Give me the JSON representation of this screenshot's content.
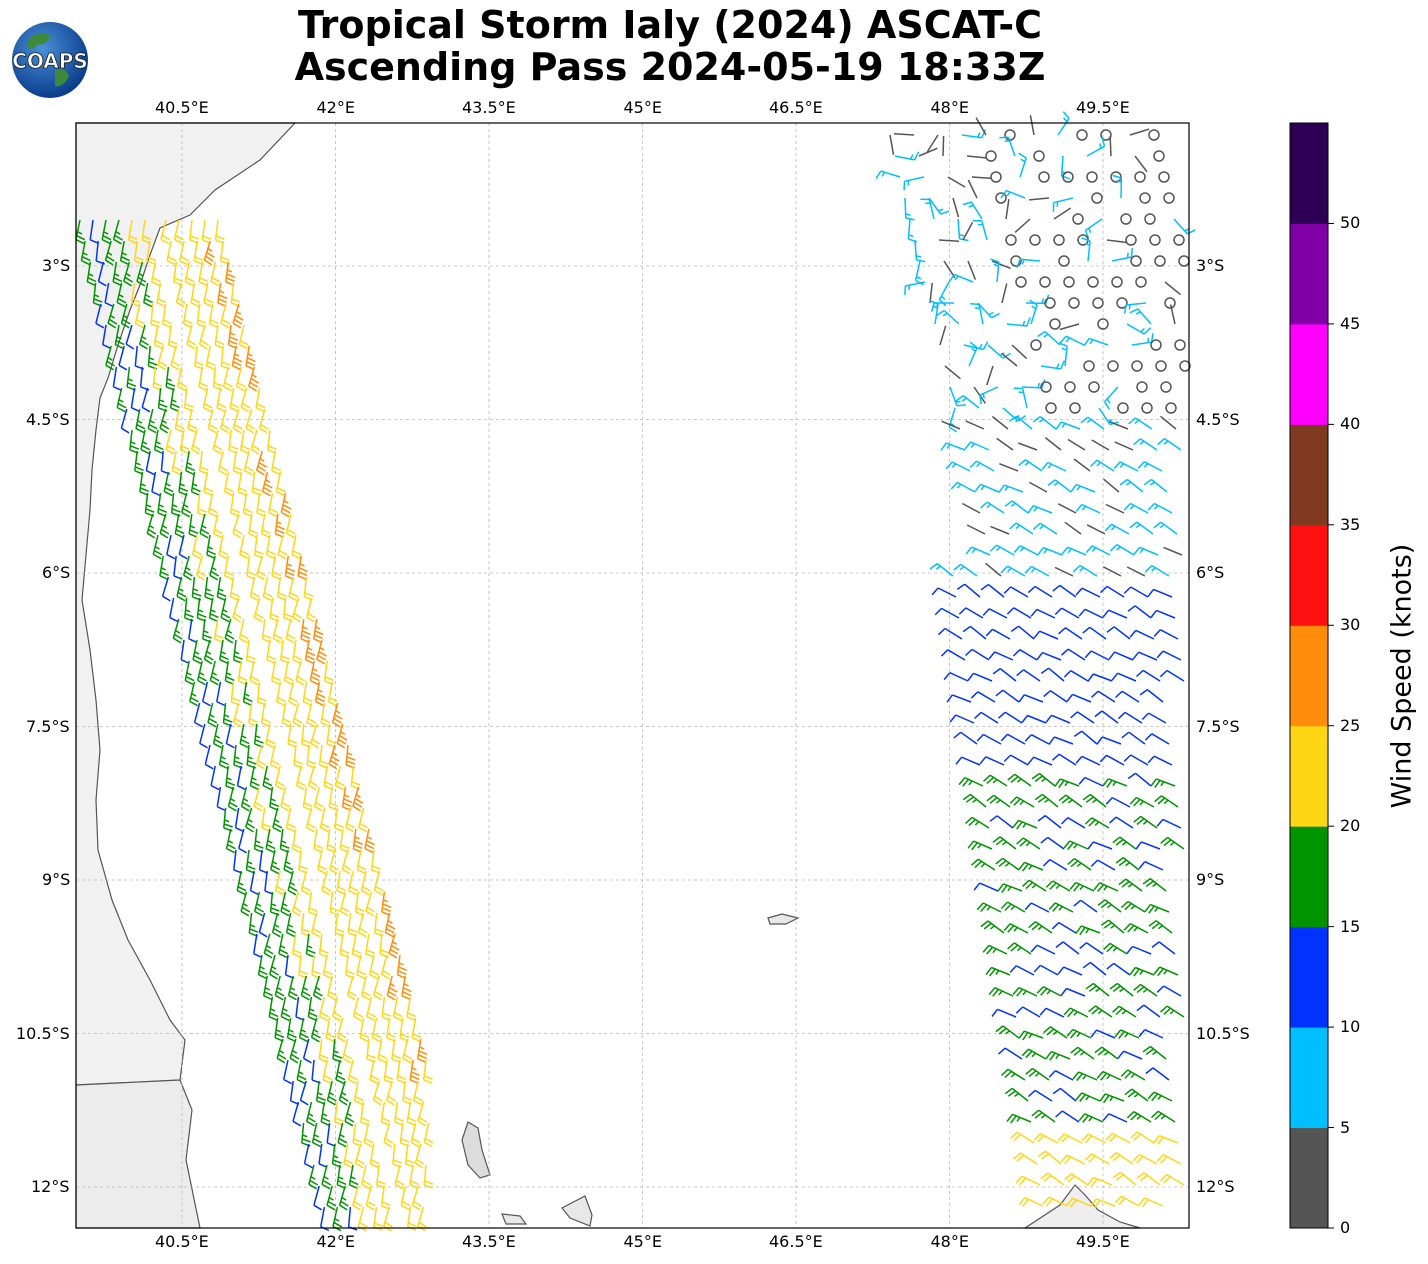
{
  "title": {
    "line1": "Tropical Storm Ialy (2024) ASCAT-C",
    "line2": "Ascending Pass 2024-05-19 18:33Z"
  },
  "logo": {
    "text": "COAPS",
    "icon": "globe-logo"
  },
  "map": {
    "lon_range": [
      39.5,
      50.4
    ],
    "lat_range": [
      -1.6,
      -12.4
    ],
    "lon_ticks": [
      "40.5°E",
      "42°E",
      "43.5°E",
      "45°E",
      "46.5°E",
      "48°E",
      "49.5°E"
    ],
    "lat_ticks": [
      "3°S",
      "4.5°S",
      "6°S",
      "7.5°S",
      "9°S",
      "10.5°S",
      "12°S"
    ],
    "grid": true
  },
  "colorbar": {
    "label": "Wind Speed (knots)",
    "ticks": [
      "0",
      "5",
      "10",
      "15",
      "20",
      "25",
      "30",
      "35",
      "40",
      "45",
      "50"
    ],
    "bins": [
      {
        "range": [
          0,
          5
        ],
        "color": "#555555"
      },
      {
        "range": [
          5,
          10
        ],
        "color": "#00bfff"
      },
      {
        "range": [
          10,
          15
        ],
        "color": "#0033ff"
      },
      {
        "range": [
          15,
          20
        ],
        "color": "#009400"
      },
      {
        "range": [
          20,
          25
        ],
        "color": "#ffd614"
      },
      {
        "range": [
          25,
          30
        ],
        "color": "#ff8c0a"
      },
      {
        "range": [
          30,
          35
        ],
        "color": "#ff1010"
      },
      {
        "range": [
          35,
          40
        ],
        "color": "#803a20"
      },
      {
        "range": [
          40,
          45
        ],
        "color": "#ff00ff"
      },
      {
        "range": [
          45,
          50
        ],
        "color": "#8000a8"
      },
      {
        "range": [
          50,
          55
        ],
        "color": "#2e0055"
      }
    ]
  },
  "swaths": [
    {
      "name": "west-swath",
      "lon_range": [
        39.5,
        43.0
      ],
      "dominant_speed_knots": [
        15,
        25
      ]
    },
    {
      "name": "east-swath",
      "lon_range": [
        47.5,
        50.4
      ],
      "dominant_speed_knots": [
        0,
        20
      ]
    }
  ]
}
